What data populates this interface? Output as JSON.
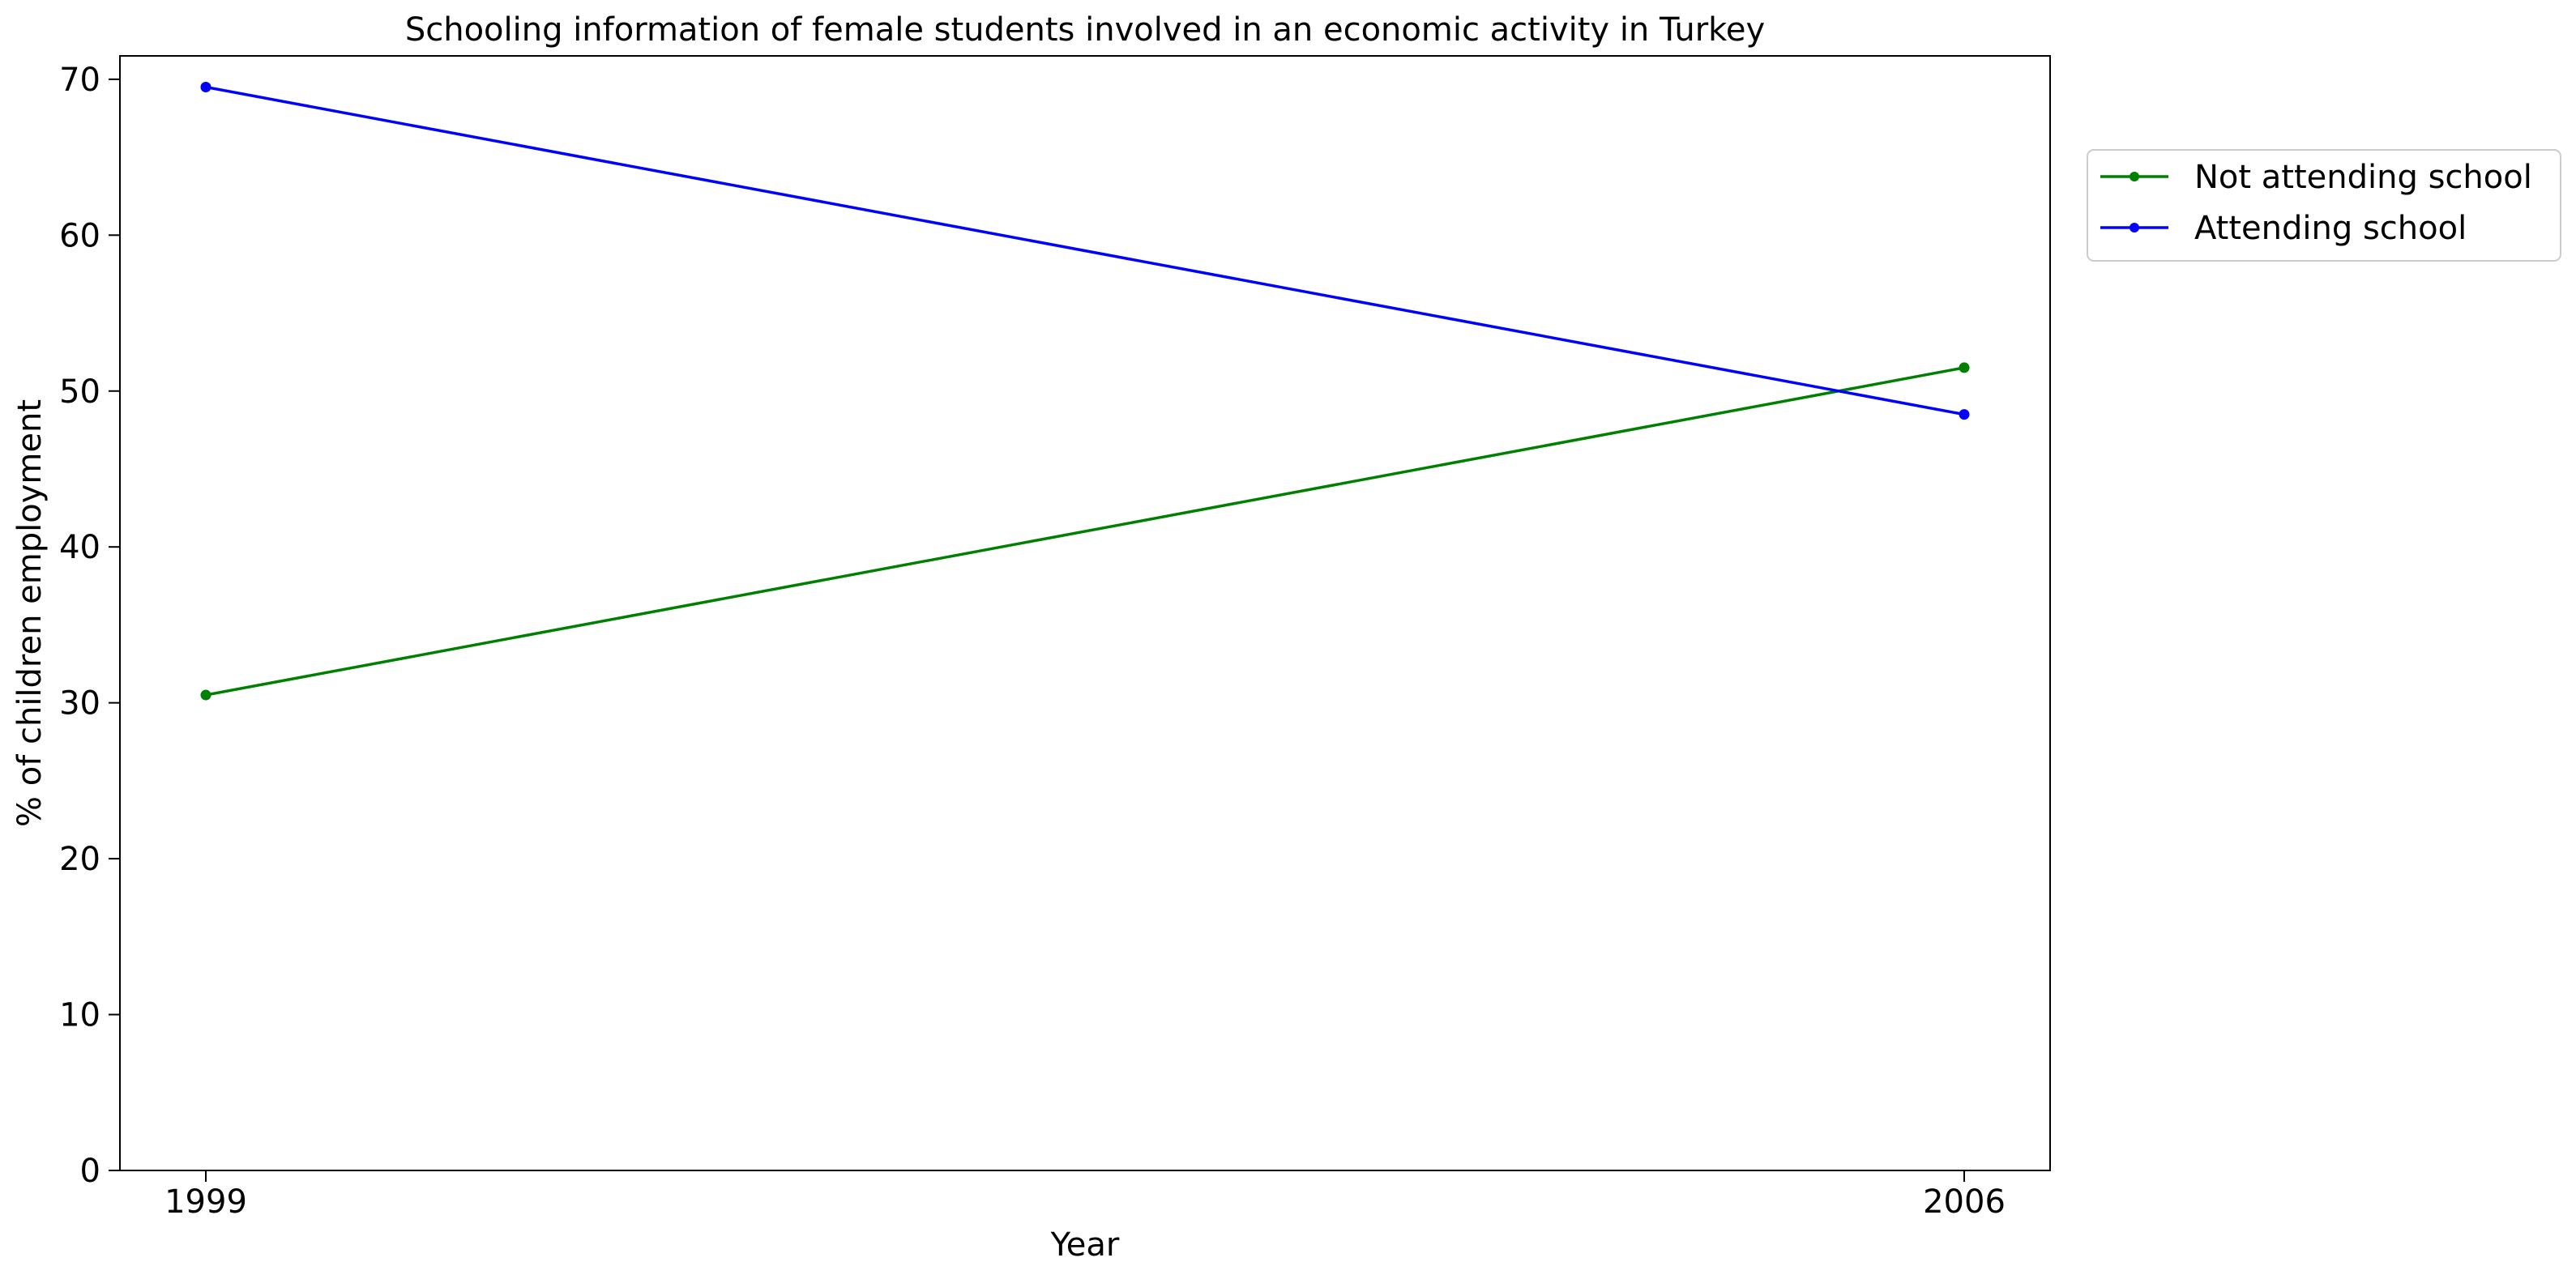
{
  "chart_data": {
    "type": "line",
    "title": "Schooling information of female students involved in an economic activity in Turkey",
    "xlabel": "Year",
    "ylabel": "% of children employment",
    "categories": [
      "1999",
      "2006"
    ],
    "yticks": [
      "0",
      "10",
      "20",
      "30",
      "40",
      "50",
      "60",
      "70"
    ],
    "ylim": [
      0,
      71.5
    ],
    "grid": false,
    "legend_position": "outside-top-right",
    "series": [
      {
        "name": "Not attending school",
        "color": "#008000",
        "values": [
          30.5,
          51.5
        ]
      },
      {
        "name": "Attending school",
        "color": "#0000ff",
        "values": [
          69.5,
          48.5
        ]
      }
    ]
  }
}
